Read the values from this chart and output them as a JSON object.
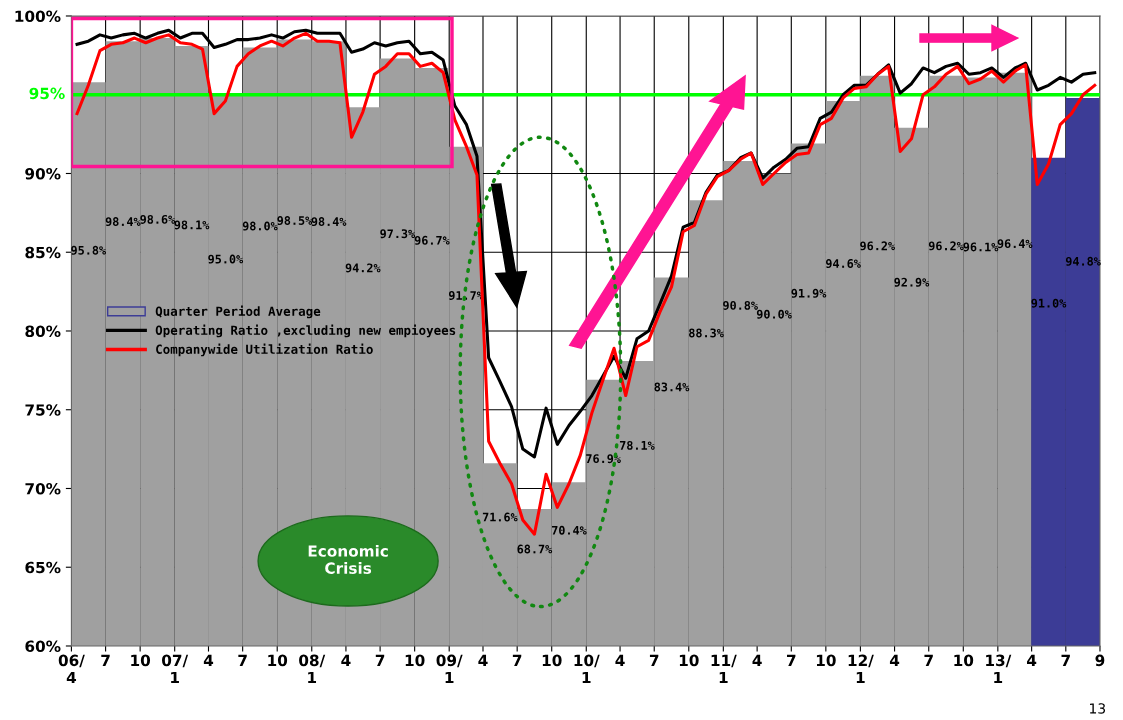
{
  "chart_data": {
    "type": "bar",
    "xlim": [
      "2006-04",
      "2013-09-30"
    ],
    "xticks": [
      {
        "value": "2006-04",
        "label": "06/\n4"
      },
      {
        "value": "2006-07",
        "label": "7"
      },
      {
        "value": "2006-10",
        "label": "10"
      },
      {
        "value": "2007-01",
        "label": "07/\n1"
      },
      {
        "value": "2007-04",
        "label": "4"
      },
      {
        "value": "2007-07",
        "label": "7"
      },
      {
        "value": "2007-10",
        "label": "10"
      },
      {
        "value": "2008-01",
        "label": "08/\n1"
      },
      {
        "value": "2008-04",
        "label": "4"
      },
      {
        "value": "2008-07",
        "label": "7"
      },
      {
        "value": "2008-10",
        "label": "10"
      },
      {
        "value": "2009-01",
        "label": "09/\n1"
      },
      {
        "value": "2009-04",
        "label": "4"
      },
      {
        "value": "2009-07",
        "label": "7"
      },
      {
        "value": "2009-10",
        "label": "10"
      },
      {
        "value": "2010-01",
        "label": "10/\n1"
      },
      {
        "value": "2010-04",
        "label": "4"
      },
      {
        "value": "2010-07",
        "label": "7"
      },
      {
        "value": "2010-10",
        "label": "10"
      },
      {
        "value": "2011-01",
        "label": "11/\n1"
      },
      {
        "value": "2011-04",
        "label": "4"
      },
      {
        "value": "2011-07",
        "label": "7"
      },
      {
        "value": "2011-10",
        "label": "10"
      },
      {
        "value": "2012-01",
        "label": "12/\n1"
      },
      {
        "value": "2012-04",
        "label": "4"
      },
      {
        "value": "2012-07",
        "label": "7"
      },
      {
        "value": "2012-10",
        "label": "10"
      },
      {
        "value": "2013-01",
        "label": "13/\n1"
      },
      {
        "value": "2013-04",
        "label": "4"
      },
      {
        "value": "2013-07",
        "label": "7"
      },
      {
        "value": "2013-09-30",
        "label": "9"
      }
    ],
    "ylim": [
      60,
      100
    ],
    "yticks": [
      {
        "value": 60,
        "label": "60%"
      },
      {
        "value": 65,
        "label": "65%"
      },
      {
        "value": 70,
        "label": "70%"
      },
      {
        "value": 75,
        "label": "75%"
      },
      {
        "value": 80,
        "label": "80%"
      },
      {
        "value": 85,
        "label": "85%"
      },
      {
        "value": 90,
        "label": "90%"
      },
      {
        "value": 100,
        "label": "100%"
      }
    ],
    "grid": true,
    "legend": "left",
    "ref_lines": [
      {
        "axis": "y",
        "value": 95,
        "label": "95%",
        "color": "#00ff00"
      }
    ],
    "annotations": [
      "Economic\nCrisis",
      "13"
    ],
    "series": [
      {
        "name": "Quarter Period Average",
        "color": "#a0a0a0",
        "x": [
          "2006-05-16",
          "2006-08-16",
          "2006-11-16",
          "2007-02-15",
          "2007-05-16",
          "2007-08-16",
          "2007-11-16",
          "2008-02-15",
          "2008-05-16",
          "2008-08-16",
          "2008-11-16",
          "2009-02-15",
          "2009-05-16",
          "2009-08-16",
          "2009-11-16",
          "2010-02-15",
          "2010-05-16",
          "2010-08-16",
          "2010-11-16",
          "2011-02-15",
          "2011-05-16",
          "2011-08-16",
          "2011-11-16",
          "2012-02-15",
          "2012-05-16",
          "2012-08-16",
          "2012-11-16",
          "2013-02-15",
          "2013-05-16",
          "2013-08-16"
        ],
        "values": [
          95.8,
          98.4,
          98.6,
          98.1,
          95.0,
          98.0,
          98.5,
          98.4,
          94.2,
          97.3,
          96.7,
          91.7,
          71.6,
          68.7,
          70.4,
          76.9,
          78.1,
          83.4,
          88.3,
          90.8,
          90.0,
          91.9,
          94.6,
          96.2,
          92.9,
          96.2,
          96.1,
          96.4,
          91.0,
          94.8
        ],
        "value_labels": [
          "95.8%",
          "98.4%",
          "98.6%",
          "98.1%",
          "95.0%",
          "98.0%",
          "98.5%",
          "98.4%",
          "94.2%",
          "97.3%",
          "96.7%",
          "91.7%",
          "71.6%",
          "68.7%",
          "70.4%",
          "76.9%",
          "78.1%",
          "83.4%",
          "88.3%",
          "90.8%",
          "90.0%",
          "91.9%",
          "94.6%",
          "96.2%",
          "92.9%",
          "96.2%",
          "96.1%",
          "96.4%",
          "91.0%",
          "94.8%"
        ],
        "colors": [
          "#a0a0a0",
          "#a0a0a0",
          "#a0a0a0",
          "#a0a0a0",
          "#a0a0a0",
          "#a0a0a0",
          "#a0a0a0",
          "#a0a0a0",
          "#a0a0a0",
          "#a0a0a0",
          "#a0a0a0",
          "#a0a0a0",
          "#a0a0a0",
          "#a0a0a0",
          "#a0a0a0",
          "#a0a0a0",
          "#a0a0a0",
          "#a0a0a0",
          "#a0a0a0",
          "#a0a0a0",
          "#a0a0a0",
          "#a0a0a0",
          "#a0a0a0",
          "#a0a0a0",
          "#a0a0a0",
          "#a0a0a0",
          "#a0a0a0",
          "#a0a0a0",
          "#3c3c96",
          "#3c3c96"
        ]
      },
      {
        "type": "line",
        "name": "Operating Ratio ,excluding new empioyees",
        "color": "#000000",
        "x": [
          "2006-04-16",
          "2006-05-16",
          "2006-06-16",
          "2006-07-16",
          "2006-08-16",
          "2006-09-16",
          "2006-10-16",
          "2006-11-16",
          "2006-12-16",
          "2007-01-16",
          "2007-02-16",
          "2007-03-16",
          "2007-04-16",
          "2007-05-16",
          "2007-06-16",
          "2007-07-16",
          "2007-08-16",
          "2007-09-16",
          "2007-10-16",
          "2007-11-16",
          "2007-12-16",
          "2008-01-16",
          "2008-02-16",
          "2008-03-16",
          "2008-04-16",
          "2008-05-16",
          "2008-06-16",
          "2008-07-16",
          "2008-08-16",
          "2008-09-16",
          "2008-10-16",
          "2008-11-16",
          "2008-12-16",
          "2009-01-16",
          "2009-02-16",
          "2009-03-16",
          "2009-04-16",
          "2009-05-16",
          "2009-06-16",
          "2009-07-16",
          "2009-08-16",
          "2009-09-16",
          "2009-10-16",
          "2009-11-16",
          "2009-12-16",
          "2010-01-16",
          "2010-02-16",
          "2010-03-16",
          "2010-04-16",
          "2010-05-16",
          "2010-06-16",
          "2010-07-16",
          "2010-08-16",
          "2010-09-16",
          "2010-10-16",
          "2010-11-16",
          "2010-12-16",
          "2011-01-16",
          "2011-02-16",
          "2011-03-16",
          "2011-04-16",
          "2011-05-16",
          "2011-06-16",
          "2011-07-16",
          "2011-08-16",
          "2011-09-16",
          "2011-10-16",
          "2011-11-16",
          "2011-12-16",
          "2012-01-16",
          "2012-02-16",
          "2012-03-16",
          "2012-04-16",
          "2012-05-16",
          "2012-06-16",
          "2012-07-16",
          "2012-08-16",
          "2012-09-16",
          "2012-10-16",
          "2012-11-16",
          "2012-12-16",
          "2013-01-16",
          "2013-02-16",
          "2013-03-16",
          "2013-04-16",
          "2013-05-16",
          "2013-06-16",
          "2013-07-16",
          "2013-08-16",
          "2013-09-16"
        ],
        "values": [
          98.2,
          98.4,
          98.8,
          98.6,
          98.8,
          98.9,
          98.6,
          98.9,
          99.1,
          98.6,
          98.9,
          98.9,
          98.0,
          98.2,
          98.5,
          98.5,
          98.6,
          98.8,
          98.6,
          99.0,
          99.1,
          98.9,
          98.9,
          98.9,
          97.7,
          97.9,
          98.3,
          98.1,
          98.3,
          98.4,
          97.6,
          97.7,
          97.2,
          94.3,
          93.1,
          91.1,
          78.3,
          76.8,
          75.2,
          72.5,
          72.0,
          75.1,
          72.8,
          74.0,
          74.9,
          75.9,
          77.2,
          78.4,
          77.0,
          79.5,
          80.0,
          81.7,
          83.5,
          86.6,
          86.9,
          88.8,
          89.9,
          90.2,
          91.0,
          91.3,
          89.7,
          90.4,
          90.9,
          91.6,
          91.7,
          93.5,
          93.9,
          95.0,
          95.6,
          95.6,
          96.3,
          96.9,
          95.1,
          95.7,
          96.7,
          96.4,
          96.8,
          97.0,
          96.3,
          96.4,
          96.7,
          96.1,
          96.7,
          97.0,
          95.3,
          95.6,
          96.1,
          95.8,
          96.3,
          96.4
        ]
      },
      {
        "type": "line",
        "name": "Companywide Utilization Ratio",
        "color": "#ff0000",
        "x": [
          "2006-04-16",
          "2006-05-16",
          "2006-06-16",
          "2006-07-16",
          "2006-08-16",
          "2006-09-16",
          "2006-10-16",
          "2006-11-16",
          "2006-12-16",
          "2007-01-16",
          "2007-02-16",
          "2007-03-16",
          "2007-04-16",
          "2007-05-16",
          "2007-06-16",
          "2007-07-16",
          "2007-08-16",
          "2007-09-16",
          "2007-10-16",
          "2007-11-16",
          "2007-12-16",
          "2008-01-16",
          "2008-02-16",
          "2008-03-16",
          "2008-04-16",
          "2008-05-16",
          "2008-06-16",
          "2008-07-16",
          "2008-08-16",
          "2008-09-16",
          "2008-10-16",
          "2008-11-16",
          "2008-12-16",
          "2009-01-16",
          "2009-02-16",
          "2009-03-16",
          "2009-04-16",
          "2009-05-16",
          "2009-06-16",
          "2009-07-16",
          "2009-08-16",
          "2009-09-16",
          "2009-10-16",
          "2009-11-16",
          "2009-12-16",
          "2010-01-16",
          "2010-02-16",
          "2010-03-16",
          "2010-04-16",
          "2010-05-16",
          "2010-06-16",
          "2010-07-16",
          "2010-08-16",
          "2010-09-16",
          "2010-10-16",
          "2010-11-16",
          "2010-12-16",
          "2011-01-16",
          "2011-02-16",
          "2011-03-16",
          "2011-04-16",
          "2011-05-16",
          "2011-06-16",
          "2011-07-16",
          "2011-08-16",
          "2011-09-16",
          "2011-10-16",
          "2011-11-16",
          "2011-12-16",
          "2012-01-16",
          "2012-02-16",
          "2012-03-16",
          "2012-04-16",
          "2012-05-16",
          "2012-06-16",
          "2012-07-16",
          "2012-08-16",
          "2012-09-16",
          "2012-10-16",
          "2012-11-16",
          "2012-12-16",
          "2013-01-16",
          "2013-02-16",
          "2013-03-16",
          "2013-04-16",
          "2013-05-16",
          "2013-06-16",
          "2013-07-16",
          "2013-08-16",
          "2013-09-16"
        ],
        "values": [
          93.8,
          95.6,
          97.8,
          98.2,
          98.3,
          98.6,
          98.3,
          98.6,
          98.8,
          98.3,
          98.2,
          97.9,
          93.8,
          94.6,
          96.8,
          97.6,
          98.1,
          98.4,
          98.1,
          98.6,
          98.9,
          98.4,
          98.4,
          98.3,
          92.3,
          93.9,
          96.3,
          96.8,
          97.6,
          97.6,
          96.8,
          97.0,
          96.4,
          93.4,
          91.7,
          89.9,
          73.0,
          71.6,
          70.3,
          68.0,
          67.1,
          70.9,
          68.8,
          70.3,
          72.1,
          74.8,
          77.0,
          78.9,
          75.9,
          79.0,
          79.4,
          81.2,
          82.8,
          86.3,
          86.7,
          88.7,
          89.8,
          90.2,
          90.9,
          91.3,
          89.3,
          90.0,
          90.7,
          91.2,
          91.3,
          93.1,
          93.5,
          94.8,
          95.4,
          95.5,
          96.3,
          96.8,
          91.4,
          92.2,
          95.0,
          95.5,
          96.3,
          96.8,
          95.7,
          96.0,
          96.5,
          95.8,
          96.5,
          96.9,
          89.3,
          90.6,
          93.1,
          93.8,
          95.0,
          95.6
        ]
      }
    ]
  }
}
